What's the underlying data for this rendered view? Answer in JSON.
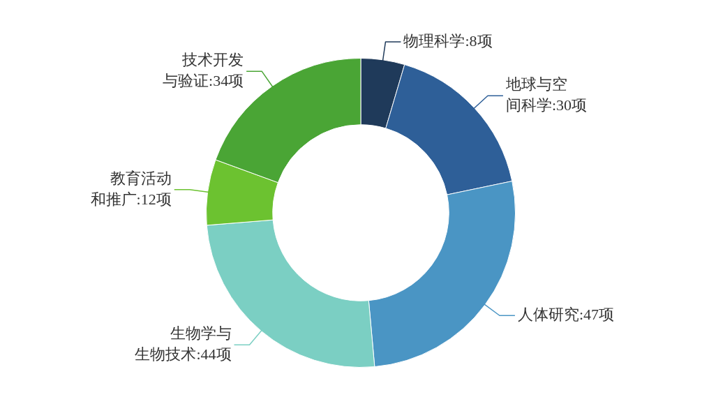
{
  "chart_data": {
    "type": "donut",
    "categories": [
      "物理科学",
      "地球与空间科学",
      "人体研究",
      "生物学与生物技术",
      "教育活动和推广",
      "技术开发与验证"
    ],
    "values": [
      8,
      30,
      47,
      44,
      12,
      34
    ],
    "colors": [
      "#1f3a5a",
      "#2e5f98",
      "#4a95c4",
      "#7bcfc3",
      "#6cc230",
      "#4aa535"
    ],
    "value_labels": [
      "8项",
      "30项",
      "47项",
      "44项",
      "12项",
      "34项"
    ],
    "legend": false
  }
}
